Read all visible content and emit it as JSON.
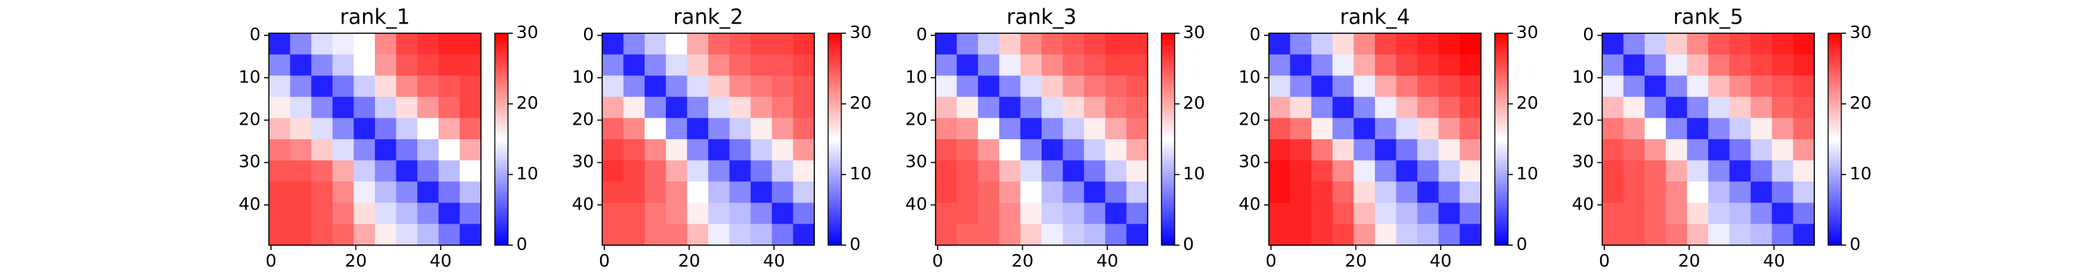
{
  "chart_data": [
    {
      "type": "heatmap",
      "title": "rank_1",
      "colors": [
        "#0000ff",
        "#ffffff",
        "#ff0000"
      ],
      "x": [
        2,
        7,
        12,
        17,
        22,
        27,
        32,
        37,
        42,
        47
      ],
      "y": [
        2,
        7,
        12,
        17,
        22,
        27,
        32,
        37,
        42,
        47
      ],
      "values": [
        [
          2,
          8,
          13,
          14,
          15,
          22,
          26,
          27,
          28,
          28
        ],
        [
          8,
          2,
          8,
          12,
          15,
          21,
          25,
          26,
          27,
          27
        ],
        [
          13,
          8,
          2,
          7,
          12,
          17,
          22,
          24,
          25,
          26
        ],
        [
          16,
          13,
          8,
          2,
          7,
          12,
          17,
          21,
          24,
          26
        ],
        [
          19,
          17,
          13,
          8,
          2,
          7,
          12,
          15,
          20,
          24
        ],
        [
          23,
          22,
          18,
          13,
          8,
          2,
          7,
          11,
          15,
          20
        ],
        [
          25,
          25,
          24,
          20,
          12,
          8,
          2,
          7,
          11,
          15
        ],
        [
          26,
          26,
          25,
          22,
          14,
          11,
          8,
          2,
          7,
          11
        ],
        [
          26,
          26,
          25,
          23,
          17,
          13,
          11,
          8,
          2,
          7
        ],
        [
          26,
          26,
          25,
          24,
          20,
          16,
          13,
          11,
          7,
          2
        ]
      ],
      "xlim": [
        -0.5,
        49.5
      ],
      "ylim": [
        49.5,
        -0.5
      ],
      "xticks": [
        0,
        20,
        40
      ],
      "yticks": [
        0,
        10,
        20,
        30,
        40
      ],
      "clim": [
        0,
        30
      ],
      "cticks": [
        0,
        10,
        20,
        30
      ]
    },
    {
      "type": "heatmap",
      "title": "rank_2",
      "colors": [
        "#0000ff",
        "#ffffff",
        "#ff0000"
      ],
      "x": [
        2,
        7,
        12,
        17,
        22,
        27,
        32,
        37,
        42,
        47
      ],
      "y": [
        2,
        7,
        12,
        17,
        22,
        27,
        32,
        37,
        42,
        47
      ],
      "values": [
        [
          2,
          8,
          12,
          15,
          20,
          24,
          25,
          26,
          26,
          27
        ],
        [
          8,
          2,
          8,
          13,
          18,
          22,
          24,
          25,
          25,
          26
        ],
        [
          13,
          8,
          2,
          8,
          13,
          18,
          22,
          23,
          24,
          25
        ],
        [
          20,
          16,
          8,
          2,
          8,
          13,
          17,
          21,
          23,
          25
        ],
        [
          24,
          22,
          15,
          8,
          2,
          8,
          12,
          16,
          21,
          24
        ],
        [
          26,
          25,
          22,
          16,
          8,
          2,
          7,
          12,
          16,
          21
        ],
        [
          27,
          26,
          24,
          20,
          13,
          8,
          2,
          7,
          12,
          16
        ],
        [
          26,
          26,
          24,
          22,
          15,
          11,
          8,
          2,
          7,
          12
        ],
        [
          25,
          25,
          23,
          22,
          16,
          12,
          11,
          8,
          2,
          7
        ],
        [
          25,
          25,
          23,
          23,
          19,
          14,
          12,
          11,
          7,
          2
        ]
      ],
      "xlim": [
        -0.5,
        49.5
      ],
      "ylim": [
        49.5,
        -0.5
      ],
      "xticks": [
        0,
        20,
        40
      ],
      "yticks": [
        0,
        10,
        20,
        30,
        40
      ],
      "clim": [
        0,
        30
      ],
      "cticks": [
        0,
        10,
        20,
        30
      ]
    },
    {
      "type": "heatmap",
      "title": "rank_3",
      "colors": [
        "#0000ff",
        "#ffffff",
        "#ff0000"
      ],
      "x": [
        2,
        7,
        12,
        17,
        22,
        27,
        32,
        37,
        42,
        47
      ],
      "y": [
        2,
        7,
        12,
        17,
        22,
        27,
        32,
        37,
        42,
        47
      ],
      "values": [
        [
          2,
          8,
          12,
          18,
          22,
          24,
          25,
          26,
          27,
          27
        ],
        [
          8,
          2,
          8,
          14,
          19,
          22,
          24,
          25,
          26,
          26
        ],
        [
          14,
          8,
          2,
          8,
          13,
          18,
          21,
          23,
          24,
          25
        ],
        [
          19,
          16,
          8,
          2,
          8,
          13,
          17,
          20,
          23,
          24
        ],
        [
          22,
          21,
          15,
          8,
          2,
          8,
          12,
          16,
          20,
          23
        ],
        [
          25,
          24,
          21,
          15,
          8,
          2,
          7,
          12,
          16,
          20
        ],
        [
          26,
          25,
          23,
          19,
          13,
          8,
          2,
          7,
          12,
          16
        ],
        [
          26,
          25,
          24,
          21,
          15,
          11,
          8,
          2,
          7,
          12
        ],
        [
          25,
          25,
          24,
          22,
          16,
          12,
          11,
          8,
          2,
          7
        ],
        [
          25,
          24,
          24,
          22,
          18,
          14,
          12,
          11,
          7,
          2
        ]
      ],
      "xlim": [
        -0.5,
        49.5
      ],
      "ylim": [
        49.5,
        -0.5
      ],
      "xticks": [
        0,
        20,
        40
      ],
      "yticks": [
        0,
        10,
        20,
        30,
        40
      ],
      "clim": [
        0,
        30
      ],
      "cticks": [
        0,
        10,
        20,
        30
      ]
    },
    {
      "type": "heatmap",
      "title": "rank_4",
      "colors": [
        "#0000ff",
        "#ffffff",
        "#ff0000"
      ],
      "x": [
        2,
        7,
        12,
        17,
        22,
        27,
        32,
        37,
        42,
        47
      ],
      "y": [
        2,
        7,
        12,
        17,
        22,
        27,
        32,
        37,
        42,
        47
      ],
      "values": [
        [
          2,
          8,
          12,
          17,
          22,
          26,
          27,
          28,
          29,
          30
        ],
        [
          8,
          2,
          8,
          14,
          20,
          24,
          26,
          27,
          28,
          29
        ],
        [
          13,
          8,
          2,
          8,
          14,
          20,
          23,
          25,
          26,
          27
        ],
        [
          20,
          17,
          8,
          2,
          8,
          14,
          19,
          22,
          24,
          26
        ],
        [
          25,
          23,
          16,
          8,
          2,
          8,
          13,
          17,
          21,
          24
        ],
        [
          28,
          27,
          23,
          17,
          8,
          2,
          7,
          12,
          16,
          21
        ],
        [
          29,
          28,
          26,
          22,
          14,
          8,
          2,
          7,
          12,
          16
        ],
        [
          29,
          28,
          27,
          24,
          17,
          12,
          8,
          2,
          7,
          12
        ],
        [
          28,
          28,
          27,
          25,
          19,
          13,
          11,
          8,
          2,
          7
        ],
        [
          28,
          28,
          27,
          26,
          21,
          16,
          12,
          11,
          7,
          2
        ]
      ],
      "xlim": [
        -0.5,
        49.5
      ],
      "ylim": [
        49.5,
        -0.5
      ],
      "xticks": [
        0,
        20,
        40
      ],
      "yticks": [
        0,
        10,
        20,
        30,
        40
      ],
      "clim": [
        0,
        30
      ],
      "cticks": [
        0,
        10,
        20,
        30
      ]
    },
    {
      "type": "heatmap",
      "title": "rank_5",
      "colors": [
        "#0000ff",
        "#ffffff",
        "#ff0000"
      ],
      "x": [
        2,
        7,
        12,
        17,
        22,
        27,
        32,
        37,
        42,
        47
      ],
      "y": [
        2,
        7,
        12,
        17,
        22,
        27,
        32,
        37,
        42,
        47
      ],
      "values": [
        [
          2,
          8,
          12,
          18,
          22,
          25,
          26,
          27,
          28,
          29
        ],
        [
          8,
          2,
          8,
          14,
          19,
          23,
          25,
          26,
          27,
          28
        ],
        [
          14,
          8,
          2,
          8,
          14,
          19,
          22,
          24,
          25,
          26
        ],
        [
          19,
          16,
          8,
          2,
          8,
          13,
          18,
          21,
          24,
          25
        ],
        [
          23,
          21,
          15,
          8,
          2,
          8,
          12,
          16,
          21,
          24
        ],
        [
          25,
          24,
          21,
          16,
          8,
          2,
          7,
          12,
          16,
          21
        ],
        [
          26,
          25,
          24,
          20,
          13,
          8,
          2,
          7,
          12,
          16
        ],
        [
          26,
          25,
          24,
          22,
          15,
          11,
          8,
          2,
          7,
          12
        ],
        [
          25,
          25,
          24,
          22,
          17,
          12,
          11,
          8,
          2,
          7
        ],
        [
          25,
          25,
          24,
          23,
          19,
          14,
          12,
          11,
          7,
          2
        ]
      ],
      "xlim": [
        -0.5,
        49.5
      ],
      "ylim": [
        49.5,
        -0.5
      ],
      "xticks": [
        0,
        20,
        40
      ],
      "yticks": [
        0,
        10,
        20,
        30,
        40
      ],
      "clim": [
        0,
        30
      ],
      "cticks": [
        0,
        10,
        20,
        30
      ]
    }
  ]
}
